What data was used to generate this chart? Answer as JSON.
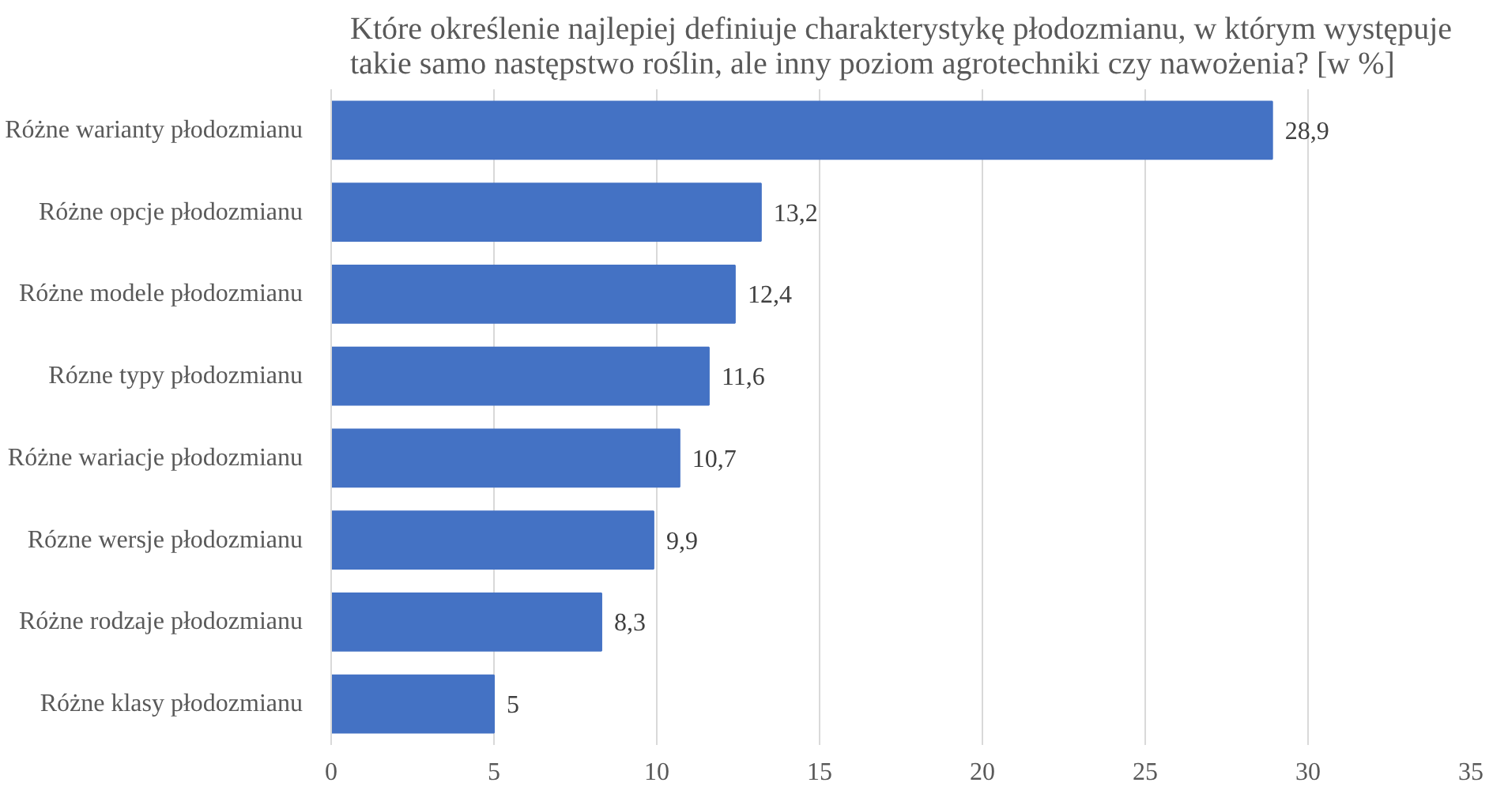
{
  "chart_data": {
    "type": "bar",
    "orientation": "horizontal",
    "title": "Które określenie najlepiej definiuje charakterystykę płodozmianu, w którym występuje\ntakie samo następstwo roślin, ale inny poziom agrotechniki czy nawożenia? [w %]",
    "categories": [
      "Różne warianty płodozmianu",
      "Różne opcje płodozmianu",
      "Różne modele płodozmianu",
      "Rózne typy płodozmianu",
      "Różne wariacje płodozmianu",
      "Rózne wersje płodozmianu",
      "Różne rodzaje płodozmianu",
      "Różne klasy płodozmianu"
    ],
    "values": [
      28.9,
      13.2,
      12.4,
      11.6,
      10.7,
      9.9,
      8.3,
      5
    ],
    "value_labels": [
      "28,9",
      "13,2",
      "12,4",
      "11,6",
      "10,7",
      "9,9",
      "8,3",
      "5"
    ],
    "color": "#4472c4",
    "xlim": [
      0,
      35
    ],
    "xticks": [
      0,
      5,
      10,
      15,
      20,
      25,
      30,
      35
    ],
    "grid": "x"
  }
}
